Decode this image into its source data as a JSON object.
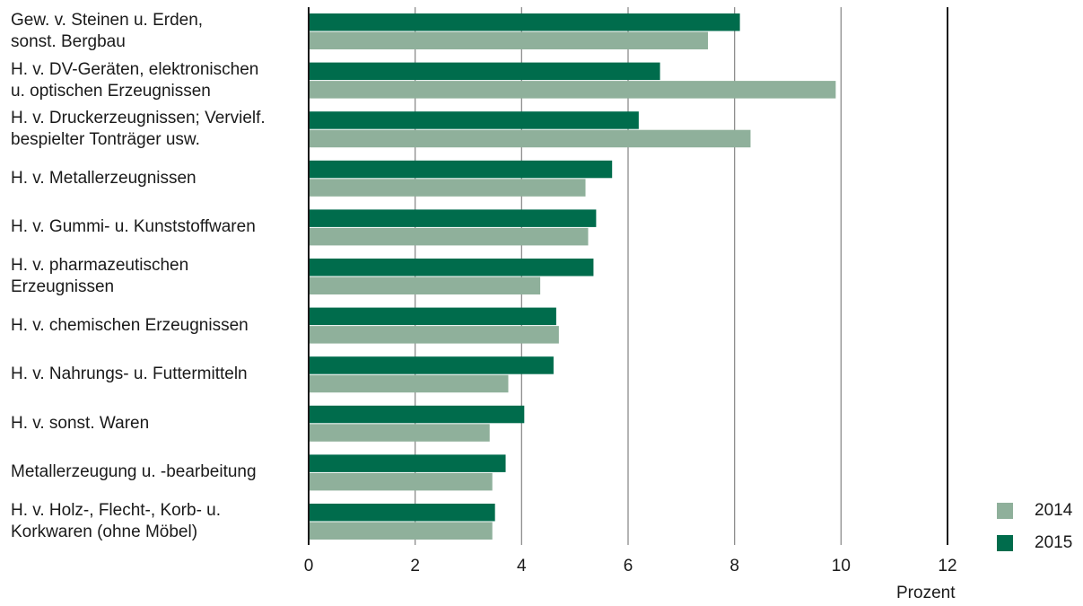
{
  "chart_data": {
    "type": "bar",
    "orientation": "horizontal",
    "categories": [
      "Gew. v. Steinen u. Erden,\nsonst. Bergbau",
      "H. v. DV-Geräten, elektronischen\nu. optischen Erzeugnissen",
      "H. v. Druckerzeugnissen; Vervielf.\nbespielter Tonträger usw.",
      "H. v. Metallerzeugnissen",
      "H. v. Gummi- u. Kunststoffwaren",
      "H. v. pharmazeutischen\nErzeugnissen",
      "H. v. chemischen Erzeugnissen",
      "H. v. Nahrungs- u. Futtermitteln",
      "H. v. sonst. Waren",
      "Metallerzeugung u. -bearbeitung",
      "H. v. Holz-, Flecht-, Korb- u.\nKorkwaren (ohne Möbel)"
    ],
    "series": [
      {
        "name": "2015",
        "color": "#006c4c",
        "values": [
          8.1,
          6.6,
          6.2,
          5.7,
          5.4,
          5.35,
          4.65,
          4.6,
          4.05,
          3.7,
          3.5
        ]
      },
      {
        "name": "2014",
        "color": "#8fb09b",
        "values": [
          7.5,
          9.9,
          8.3,
          5.2,
          5.25,
          4.35,
          4.7,
          3.75,
          3.4,
          3.45,
          3.45
        ]
      }
    ],
    "xlim": [
      0,
      12
    ],
    "xticks": [
      "0",
      "2",
      "4",
      "6",
      "8",
      "10",
      "12"
    ],
    "xlabel": "Prozent",
    "grid": true,
    "legend": {
      "position": "bottom-right",
      "entries": [
        {
          "label": "2014",
          "color": "#8fb09b"
        },
        {
          "label": "2015",
          "color": "#006c4c"
        }
      ]
    }
  }
}
